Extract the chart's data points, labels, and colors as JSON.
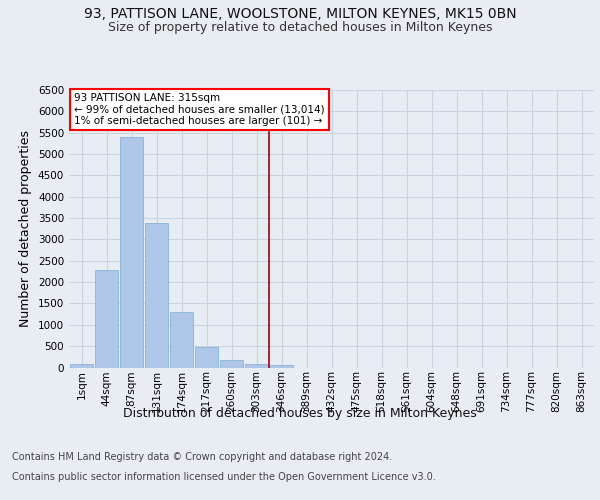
{
  "title": "93, PATTISON LANE, WOOLSTONE, MILTON KEYNES, MK15 0BN",
  "subtitle": "Size of property relative to detached houses in Milton Keynes",
  "xlabel": "Distribution of detached houses by size in Milton Keynes",
  "ylabel": "Number of detached properties",
  "footer_line1": "Contains HM Land Registry data © Crown copyright and database right 2024.",
  "footer_line2": "Contains public sector information licensed under the Open Government Licence v3.0.",
  "categories": [
    "1sqm",
    "44sqm",
    "87sqm",
    "131sqm",
    "174sqm",
    "217sqm",
    "260sqm",
    "303sqm",
    "346sqm",
    "389sqm",
    "432sqm",
    "475sqm",
    "518sqm",
    "561sqm",
    "604sqm",
    "648sqm",
    "691sqm",
    "734sqm",
    "777sqm",
    "820sqm",
    "863sqm"
  ],
  "bar_values": [
    80,
    2280,
    5400,
    3380,
    1310,
    480,
    185,
    80,
    60,
    0,
    0,
    0,
    0,
    0,
    0,
    0,
    0,
    0,
    0,
    0,
    0
  ],
  "bar_color": "#aec6e8",
  "bar_edge_color": "#7aadd4",
  "vline_index": 7.5,
  "vline_color": "#aa0000",
  "annotation_title": "93 PATTISON LANE: 315sqm",
  "annotation_line2": "← 99% of detached houses are smaller (13,014)",
  "annotation_line3": "1% of semi-detached houses are larger (101) →",
  "ylim": [
    0,
    6500
  ],
  "yticks": [
    0,
    500,
    1000,
    1500,
    2000,
    2500,
    3000,
    3500,
    4000,
    4500,
    5000,
    5500,
    6000,
    6500
  ],
  "bg_color": "#e8edf3",
  "plot_bg_color": "#e8edf3",
  "grid_color": "#c8d4e0",
  "title_fontsize": 10,
  "subtitle_fontsize": 9,
  "tick_fontsize": 7.5,
  "label_fontsize": 9,
  "footer_fontsize": 7
}
